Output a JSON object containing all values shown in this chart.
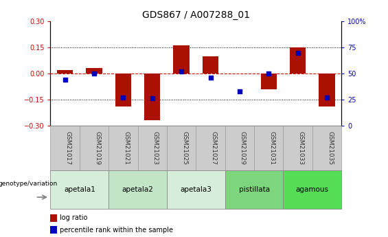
{
  "title": "GDS867 / A007288_01",
  "samples": [
    "GSM21017",
    "GSM21019",
    "GSM21021",
    "GSM21023",
    "GSM21025",
    "GSM21027",
    "GSM21029",
    "GSM21031",
    "GSM21033",
    "GSM21035"
  ],
  "log_ratio": [
    0.02,
    0.03,
    -0.19,
    -0.27,
    0.16,
    0.1,
    0.0,
    -0.09,
    0.15,
    -0.19
  ],
  "percentile_rank": [
    44,
    50,
    27,
    26,
    52,
    46,
    33,
    50,
    70,
    27
  ],
  "groups": [
    {
      "name": "apetala1",
      "indices": [
        0,
        1
      ],
      "color": "#d6edd9"
    },
    {
      "name": "apetala2",
      "indices": [
        2,
        3
      ],
      "color": "#c2e4c7"
    },
    {
      "name": "apetala3",
      "indices": [
        4,
        5
      ],
      "color": "#d6edd9"
    },
    {
      "name": "pistillata",
      "indices": [
        6,
        7
      ],
      "color": "#7dd67d"
    },
    {
      "name": "agamous",
      "indices": [
        8,
        9
      ],
      "color": "#55dd55"
    }
  ],
  "ylim": [
    -0.3,
    0.3
  ],
  "y2lim": [
    0,
    100
  ],
  "yticks": [
    -0.3,
    -0.15,
    0.0,
    0.15,
    0.3
  ],
  "y2ticks": [
    0,
    25,
    50,
    75,
    100
  ],
  "bar_color": "#aa1100",
  "dot_color": "#0000bb",
  "ref_line_color": "#cc0000",
  "grid_color": "#000000",
  "sample_box_color": "#cccccc",
  "sample_box_edge": "#999999",
  "bg_color": "#ffffff",
  "bar_width": 0.55,
  "dot_size": 22
}
